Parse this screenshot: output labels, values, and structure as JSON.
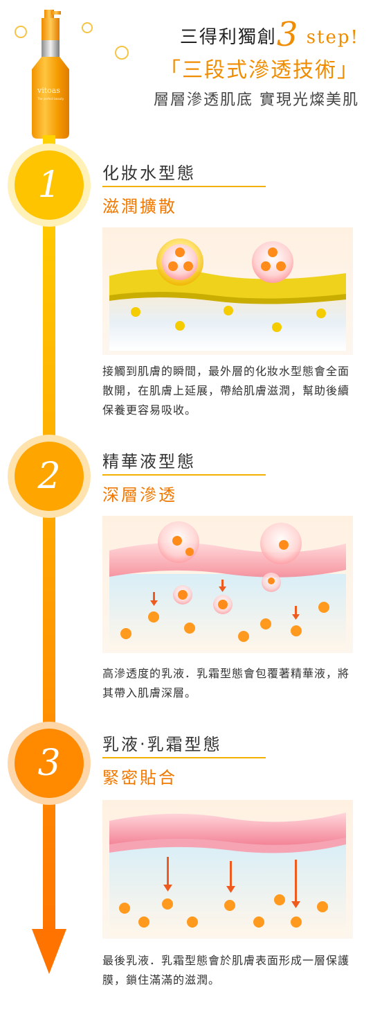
{
  "header": {
    "line1_prefix": "三得利獨創",
    "line1_number": "3",
    "line1_suffix": "step!",
    "line2": "「三段式滲透技術」",
    "line3": "層層滲透肌底 實現光燦美肌"
  },
  "bottle": {
    "brand": "vitoas",
    "tagline": "The perfect beauty"
  },
  "sections": [
    {
      "number": "1",
      "title": "化妝水型態",
      "subtitle": "滋潤擴散",
      "description": "接觸到肌膚的瞬間，最外層的化妝水型態會全面散開，在肌膚上延展，帶給肌膚滋潤，幫助後續保養更容易吸收。"
    },
    {
      "number": "2",
      "title": "精華液型態",
      "subtitle": "深層滲透",
      "description": "高滲透度的乳液．乳霜型態會包覆著精華液，將其帶入肌膚深層。"
    },
    {
      "number": "3",
      "title": "乳液‧乳霜型態",
      "subtitle": "緊密貼合",
      "description": "最後乳液．乳霜型態會於肌膚表面形成一層保護膜，鎖住滿滿的滋潤。"
    }
  ],
  "colors": {
    "accent": "#f08c00",
    "track_top": "#ffd200",
    "track_bottom": "#ff7a00",
    "line": "#f3b000"
  }
}
